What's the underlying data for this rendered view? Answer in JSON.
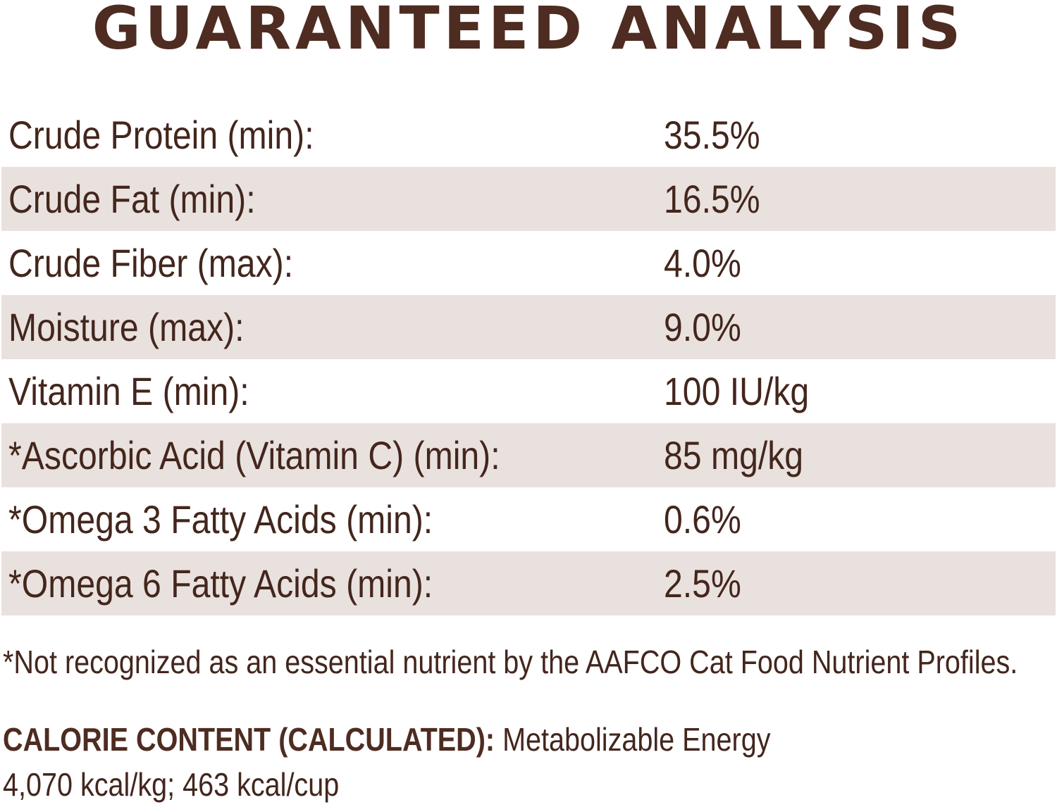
{
  "title": "GUARANTEED ANALYSIS",
  "rows": [
    {
      "label": "Crude Protein (min):",
      "value": "35.5%"
    },
    {
      "label": "Crude Fat (min):",
      "value": "16.5%"
    },
    {
      "label": "Crude Fiber (max):",
      "value": "4.0%"
    },
    {
      "label": "Moisture (max):",
      "value": "9.0%"
    },
    {
      "label": "Vitamin E (min):",
      "value": "100 IU/kg"
    },
    {
      "label": "*Ascorbic Acid (Vitamin C) (min):",
      "value": "85 mg/kg"
    },
    {
      "label": "*Omega 3 Fatty Acids (min):",
      "value": "0.6%"
    },
    {
      "label": "*Omega 6 Fatty Acids (min):",
      "value": "2.5%"
    }
  ],
  "footnote": "*Not recognized as an essential nutrient by the AAFCO Cat Food Nutrient Profiles.",
  "calorie": {
    "label": "CALORIE CONTENT (CALCULATED):",
    "text_line1": " Metabolizable Energy",
    "text_line2": "4,070 kcal/kg; 463 kcal/cup"
  },
  "colors": {
    "text": "#43261d",
    "heading": "#4e2c21",
    "shaded_row": "#e9e1dd"
  }
}
